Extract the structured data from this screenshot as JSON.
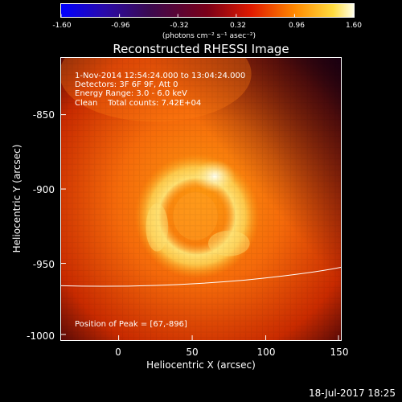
{
  "colorbar": {
    "ticks": [
      "-1.60",
      "-0.96",
      "-0.32",
      "0.32",
      "0.96",
      "1.60"
    ],
    "unit": "(photons cm⁻² s⁻¹ asec⁻²)"
  },
  "plot": {
    "title": "Reconstructed RHESSI Image",
    "info_lines": [
      " 1-Nov-2014 12:54:24.000 to 13:04:24.000",
      "Detectors: 3F 6F 9F, Att 0",
      "Energy Range: 3.0 - 6.0 keV",
      "Clean    Total counts: 7.42E+04"
    ],
    "peak": "Position of Peak = [67,-896]",
    "y_ticks": [
      "-850",
      "-900",
      "-950",
      "-1000"
    ],
    "x_ticks": [
      "0",
      "50",
      "100",
      "150"
    ],
    "xlabel": "Heliocentric X (arcsec)",
    "ylabel": "Heliocentric Y (arcsec)"
  },
  "footer": {
    "date": "18-Jul-2017 18:25"
  }
}
